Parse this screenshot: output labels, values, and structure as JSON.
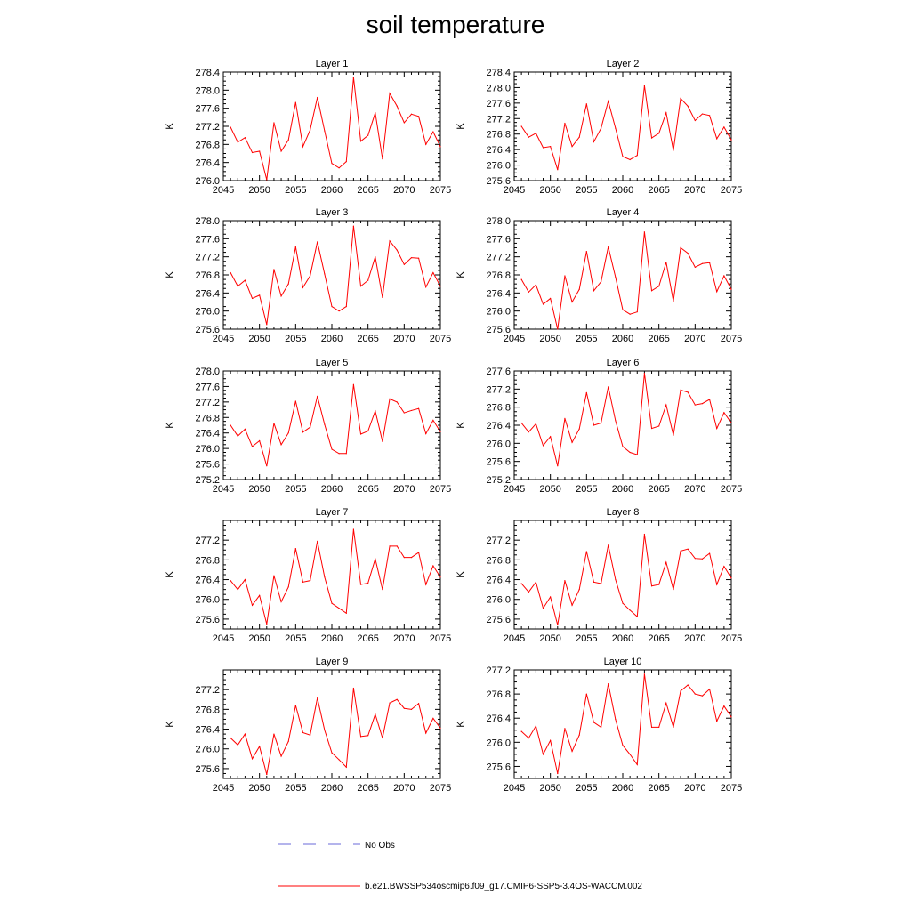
{
  "title": "soil temperature",
  "colors": {
    "series": "#ff0000",
    "no_obs": "#6a6ad8",
    "axis": "#000000"
  },
  "legend": {
    "entries": [
      {
        "label": "No Obs",
        "style": "dashed",
        "color": "#6a6ad8"
      },
      {
        "label": "b.e21.BWSSP534oscmip6.f09_g17.CMIP6-SSP5-3.4OS-WACCM.002",
        "style": "solid",
        "color": "#ff0000"
      }
    ]
  },
  "chart_data": [
    {
      "type": "line",
      "title": "Layer 1",
      "ylabel": "K",
      "xlim": [
        2045,
        2075
      ],
      "ylim": [
        276.0,
        278.4
      ],
      "xticks": [
        2045,
        2050,
        2055,
        2060,
        2065,
        2070,
        2075
      ],
      "yticks": [
        276.0,
        276.4,
        276.8,
        277.2,
        277.6,
        278.0,
        278.4
      ],
      "x": [
        2046,
        2047,
        2048,
        2049,
        2050,
        2051,
        2052,
        2053,
        2054,
        2055,
        2056,
        2057,
        2058,
        2059,
        2060,
        2061,
        2062,
        2063,
        2064,
        2065,
        2066,
        2067,
        2068,
        2069,
        2070,
        2071,
        2072,
        2073,
        2074,
        2075
      ],
      "series": [
        {
          "values": [
            277.18,
            276.85,
            276.95,
            276.62,
            276.65,
            276.02,
            277.28,
            276.65,
            276.9,
            277.73,
            276.75,
            277.12,
            277.84,
            277.1,
            276.38,
            276.28,
            276.42,
            278.28,
            276.87,
            277.0,
            277.5,
            276.48,
            277.93,
            277.65,
            277.28,
            277.47,
            277.42,
            276.8,
            277.08,
            276.75
          ]
        }
      ]
    },
    {
      "type": "line",
      "title": "Layer 2",
      "ylabel": "K",
      "xlim": [
        2045,
        2075
      ],
      "ylim": [
        275.6,
        278.4
      ],
      "xticks": [
        2045,
        2050,
        2055,
        2060,
        2065,
        2070,
        2075
      ],
      "yticks": [
        275.6,
        276.0,
        276.4,
        276.8,
        277.2,
        277.6,
        278.0,
        278.4
      ],
      "x": [
        2046,
        2047,
        2048,
        2049,
        2050,
        2051,
        2052,
        2053,
        2054,
        2055,
        2056,
        2057,
        2058,
        2059,
        2060,
        2061,
        2062,
        2063,
        2064,
        2065,
        2066,
        2067,
        2068,
        2069,
        2070,
        2071,
        2072,
        2073,
        2074,
        2075
      ],
      "series": [
        {
          "values": [
            277.0,
            276.72,
            276.82,
            276.45,
            276.48,
            275.88,
            277.08,
            276.48,
            276.72,
            277.58,
            276.6,
            276.95,
            277.65,
            276.95,
            276.22,
            276.14,
            276.25,
            278.05,
            276.7,
            276.82,
            277.35,
            276.38,
            277.72,
            277.52,
            277.15,
            277.32,
            277.28,
            276.68,
            276.98,
            276.65
          ]
        }
      ]
    },
    {
      "type": "line",
      "title": "Layer 3",
      "ylabel": "K",
      "xlim": [
        2045,
        2075
      ],
      "ylim": [
        275.6,
        278.0
      ],
      "xticks": [
        2045,
        2050,
        2055,
        2060,
        2065,
        2070,
        2075
      ],
      "yticks": [
        275.6,
        276.0,
        276.4,
        276.8,
        277.2,
        277.6,
        278.0
      ],
      "x": [
        2046,
        2047,
        2048,
        2049,
        2050,
        2051,
        2052,
        2053,
        2054,
        2055,
        2056,
        2057,
        2058,
        2059,
        2060,
        2061,
        2062,
        2063,
        2064,
        2065,
        2066,
        2067,
        2068,
        2069,
        2070,
        2071,
        2072,
        2073,
        2074,
        2075
      ],
      "series": [
        {
          "values": [
            276.85,
            276.55,
            276.68,
            276.28,
            276.35,
            275.7,
            276.92,
            276.33,
            276.6,
            277.42,
            276.52,
            276.78,
            277.53,
            276.82,
            276.1,
            276.0,
            276.1,
            277.88,
            276.55,
            276.68,
            277.2,
            276.3,
            277.55,
            277.35,
            277.03,
            277.18,
            277.17,
            276.53,
            276.85,
            276.55
          ]
        }
      ]
    },
    {
      "type": "line",
      "title": "Layer 4",
      "ylabel": "K",
      "xlim": [
        2045,
        2075
      ],
      "ylim": [
        275.6,
        278.0
      ],
      "xticks": [
        2045,
        2050,
        2055,
        2060,
        2065,
        2070,
        2075
      ],
      "yticks": [
        275.6,
        276.0,
        276.4,
        276.8,
        277.2,
        277.6,
        278.0
      ],
      "x": [
        2046,
        2047,
        2048,
        2049,
        2050,
        2051,
        2052,
        2053,
        2054,
        2055,
        2056,
        2057,
        2058,
        2059,
        2060,
        2061,
        2062,
        2063,
        2064,
        2065,
        2066,
        2067,
        2068,
        2069,
        2070,
        2071,
        2072,
        2073,
        2074,
        2075
      ],
      "series": [
        {
          "values": [
            276.7,
            276.42,
            276.58,
            276.15,
            276.28,
            275.6,
            276.78,
            276.2,
            276.48,
            277.32,
            276.45,
            276.65,
            277.42,
            276.75,
            276.03,
            275.93,
            275.98,
            277.75,
            276.45,
            276.55,
            277.08,
            276.22,
            277.4,
            277.28,
            276.97,
            277.05,
            277.07,
            276.43,
            276.78,
            276.48
          ]
        }
      ]
    },
    {
      "type": "line",
      "title": "Layer 5",
      "ylabel": "K",
      "xlim": [
        2045,
        2075
      ],
      "ylim": [
        275.2,
        278.0
      ],
      "xticks": [
        2045,
        2050,
        2055,
        2060,
        2065,
        2070,
        2075
      ],
      "yticks": [
        275.2,
        275.6,
        276.0,
        276.4,
        276.8,
        277.2,
        277.6,
        278.0
      ],
      "x": [
        2046,
        2047,
        2048,
        2049,
        2050,
        2051,
        2052,
        2053,
        2054,
        2055,
        2056,
        2057,
        2058,
        2059,
        2060,
        2061,
        2062,
        2063,
        2064,
        2065,
        2066,
        2067,
        2068,
        2069,
        2070,
        2071,
        2072,
        2073,
        2074,
        2075
      ],
      "series": [
        {
          "values": [
            276.6,
            276.32,
            276.5,
            276.05,
            276.2,
            275.55,
            276.65,
            276.1,
            276.4,
            277.22,
            276.42,
            276.55,
            277.35,
            276.62,
            275.98,
            275.87,
            275.87,
            277.65,
            276.37,
            276.45,
            276.97,
            276.18,
            277.28,
            277.2,
            276.92,
            276.98,
            277.03,
            276.38,
            276.73,
            276.43
          ]
        }
      ]
    },
    {
      "type": "line",
      "title": "Layer 6",
      "ylabel": "K",
      "xlim": [
        2045,
        2075
      ],
      "ylim": [
        275.2,
        277.6
      ],
      "xticks": [
        2045,
        2050,
        2055,
        2060,
        2065,
        2070,
        2075
      ],
      "yticks": [
        275.2,
        275.6,
        276.0,
        276.4,
        276.8,
        277.2,
        277.6
      ],
      "x": [
        2046,
        2047,
        2048,
        2049,
        2050,
        2051,
        2052,
        2053,
        2054,
        2055,
        2056,
        2057,
        2058,
        2059,
        2060,
        2061,
        2062,
        2063,
        2064,
        2065,
        2066,
        2067,
        2068,
        2069,
        2070,
        2071,
        2072,
        2073,
        2074,
        2075
      ],
      "series": [
        {
          "values": [
            276.45,
            276.25,
            276.43,
            275.95,
            276.15,
            275.5,
            276.55,
            276.02,
            276.32,
            277.12,
            276.4,
            276.45,
            277.25,
            276.5,
            275.93,
            275.8,
            275.75,
            277.55,
            276.33,
            276.38,
            276.85,
            276.18,
            277.18,
            277.13,
            276.85,
            276.88,
            276.97,
            276.33,
            276.68,
            276.45
          ]
        }
      ]
    },
    {
      "type": "line",
      "title": "Layer 7",
      "ylabel": "K",
      "xlim": [
        2045,
        2075
      ],
      "ylim": [
        275.4,
        277.6
      ],
      "xticks": [
        2045,
        2050,
        2055,
        2060,
        2065,
        2070,
        2075
      ],
      "yticks": [
        275.6,
        276.0,
        276.4,
        276.8,
        277.2
      ],
      "x": [
        2046,
        2047,
        2048,
        2049,
        2050,
        2051,
        2052,
        2053,
        2054,
        2055,
        2056,
        2057,
        2058,
        2059,
        2060,
        2061,
        2062,
        2063,
        2064,
        2065,
        2066,
        2067,
        2068,
        2069,
        2070,
        2071,
        2072,
        2073,
        2074,
        2075
      ],
      "series": [
        {
          "values": [
            276.38,
            276.2,
            276.4,
            275.88,
            276.08,
            275.5,
            276.48,
            275.95,
            276.25,
            277.03,
            276.35,
            276.38,
            277.18,
            276.45,
            275.92,
            275.82,
            275.72,
            277.42,
            276.3,
            276.33,
            276.82,
            276.2,
            277.08,
            277.08,
            276.85,
            276.85,
            276.95,
            276.3,
            276.68,
            276.45
          ]
        }
      ]
    },
    {
      "type": "line",
      "title": "Layer 8",
      "ylabel": "K",
      "xlim": [
        2045,
        2075
      ],
      "ylim": [
        275.4,
        277.6
      ],
      "xticks": [
        2045,
        2050,
        2055,
        2060,
        2065,
        2070,
        2075
      ],
      "yticks": [
        275.6,
        276.0,
        276.4,
        276.8,
        277.2
      ],
      "x": [
        2046,
        2047,
        2048,
        2049,
        2050,
        2051,
        2052,
        2053,
        2054,
        2055,
        2056,
        2057,
        2058,
        2059,
        2060,
        2061,
        2062,
        2063,
        2064,
        2065,
        2066,
        2067,
        2068,
        2069,
        2070,
        2071,
        2072,
        2073,
        2074,
        2075
      ],
      "series": [
        {
          "values": [
            276.32,
            276.15,
            276.35,
            275.82,
            276.05,
            275.48,
            276.38,
            275.88,
            276.2,
            276.97,
            276.35,
            276.32,
            277.1,
            276.4,
            275.92,
            275.78,
            275.65,
            277.32,
            276.27,
            276.3,
            276.75,
            276.2,
            276.98,
            277.02,
            276.83,
            276.82,
            276.93,
            276.3,
            276.67,
            276.43
          ]
        }
      ]
    },
    {
      "type": "line",
      "title": "Layer 9",
      "ylabel": "K",
      "xlim": [
        2045,
        2075
      ],
      "ylim": [
        275.4,
        277.6
      ],
      "xticks": [
        2045,
        2050,
        2055,
        2060,
        2065,
        2070,
        2075
      ],
      "yticks": [
        275.6,
        276.0,
        276.4,
        276.8,
        277.2
      ],
      "x": [
        2046,
        2047,
        2048,
        2049,
        2050,
        2051,
        2052,
        2053,
        2054,
        2055,
        2056,
        2057,
        2058,
        2059,
        2060,
        2061,
        2062,
        2063,
        2064,
        2065,
        2066,
        2067,
        2068,
        2069,
        2070,
        2071,
        2072,
        2073,
        2074,
        2075
      ],
      "series": [
        {
          "values": [
            276.22,
            276.08,
            276.3,
            275.8,
            276.05,
            275.48,
            276.3,
            275.85,
            276.15,
            276.88,
            276.33,
            276.28,
            277.03,
            276.38,
            275.92,
            275.78,
            275.63,
            277.23,
            276.25,
            276.27,
            276.7,
            276.22,
            276.93,
            277.0,
            276.82,
            276.8,
            276.92,
            276.32,
            276.62,
            276.42
          ]
        }
      ]
    },
    {
      "type": "line",
      "title": "Layer 10",
      "ylabel": "K",
      "xlim": [
        2045,
        2075
      ],
      "ylim": [
        275.4,
        277.2
      ],
      "xticks": [
        2045,
        2050,
        2055,
        2060,
        2065,
        2070,
        2075
      ],
      "yticks": [
        275.6,
        276.0,
        276.4,
        276.8,
        277.2
      ],
      "x": [
        2046,
        2047,
        2048,
        2049,
        2050,
        2051,
        2052,
        2053,
        2054,
        2055,
        2056,
        2057,
        2058,
        2059,
        2060,
        2061,
        2062,
        2063,
        2064,
        2065,
        2066,
        2067,
        2068,
        2069,
        2070,
        2071,
        2072,
        2073,
        2074,
        2075
      ],
      "series": [
        {
          "values": [
            276.18,
            276.07,
            276.27,
            275.8,
            276.03,
            275.48,
            276.23,
            275.85,
            276.12,
            276.8,
            276.33,
            276.25,
            276.97,
            276.38,
            275.95,
            275.8,
            275.63,
            277.13,
            276.25,
            276.25,
            276.65,
            276.25,
            276.85,
            276.95,
            276.8,
            276.77,
            276.88,
            276.35,
            276.6,
            276.42
          ]
        }
      ]
    }
  ]
}
